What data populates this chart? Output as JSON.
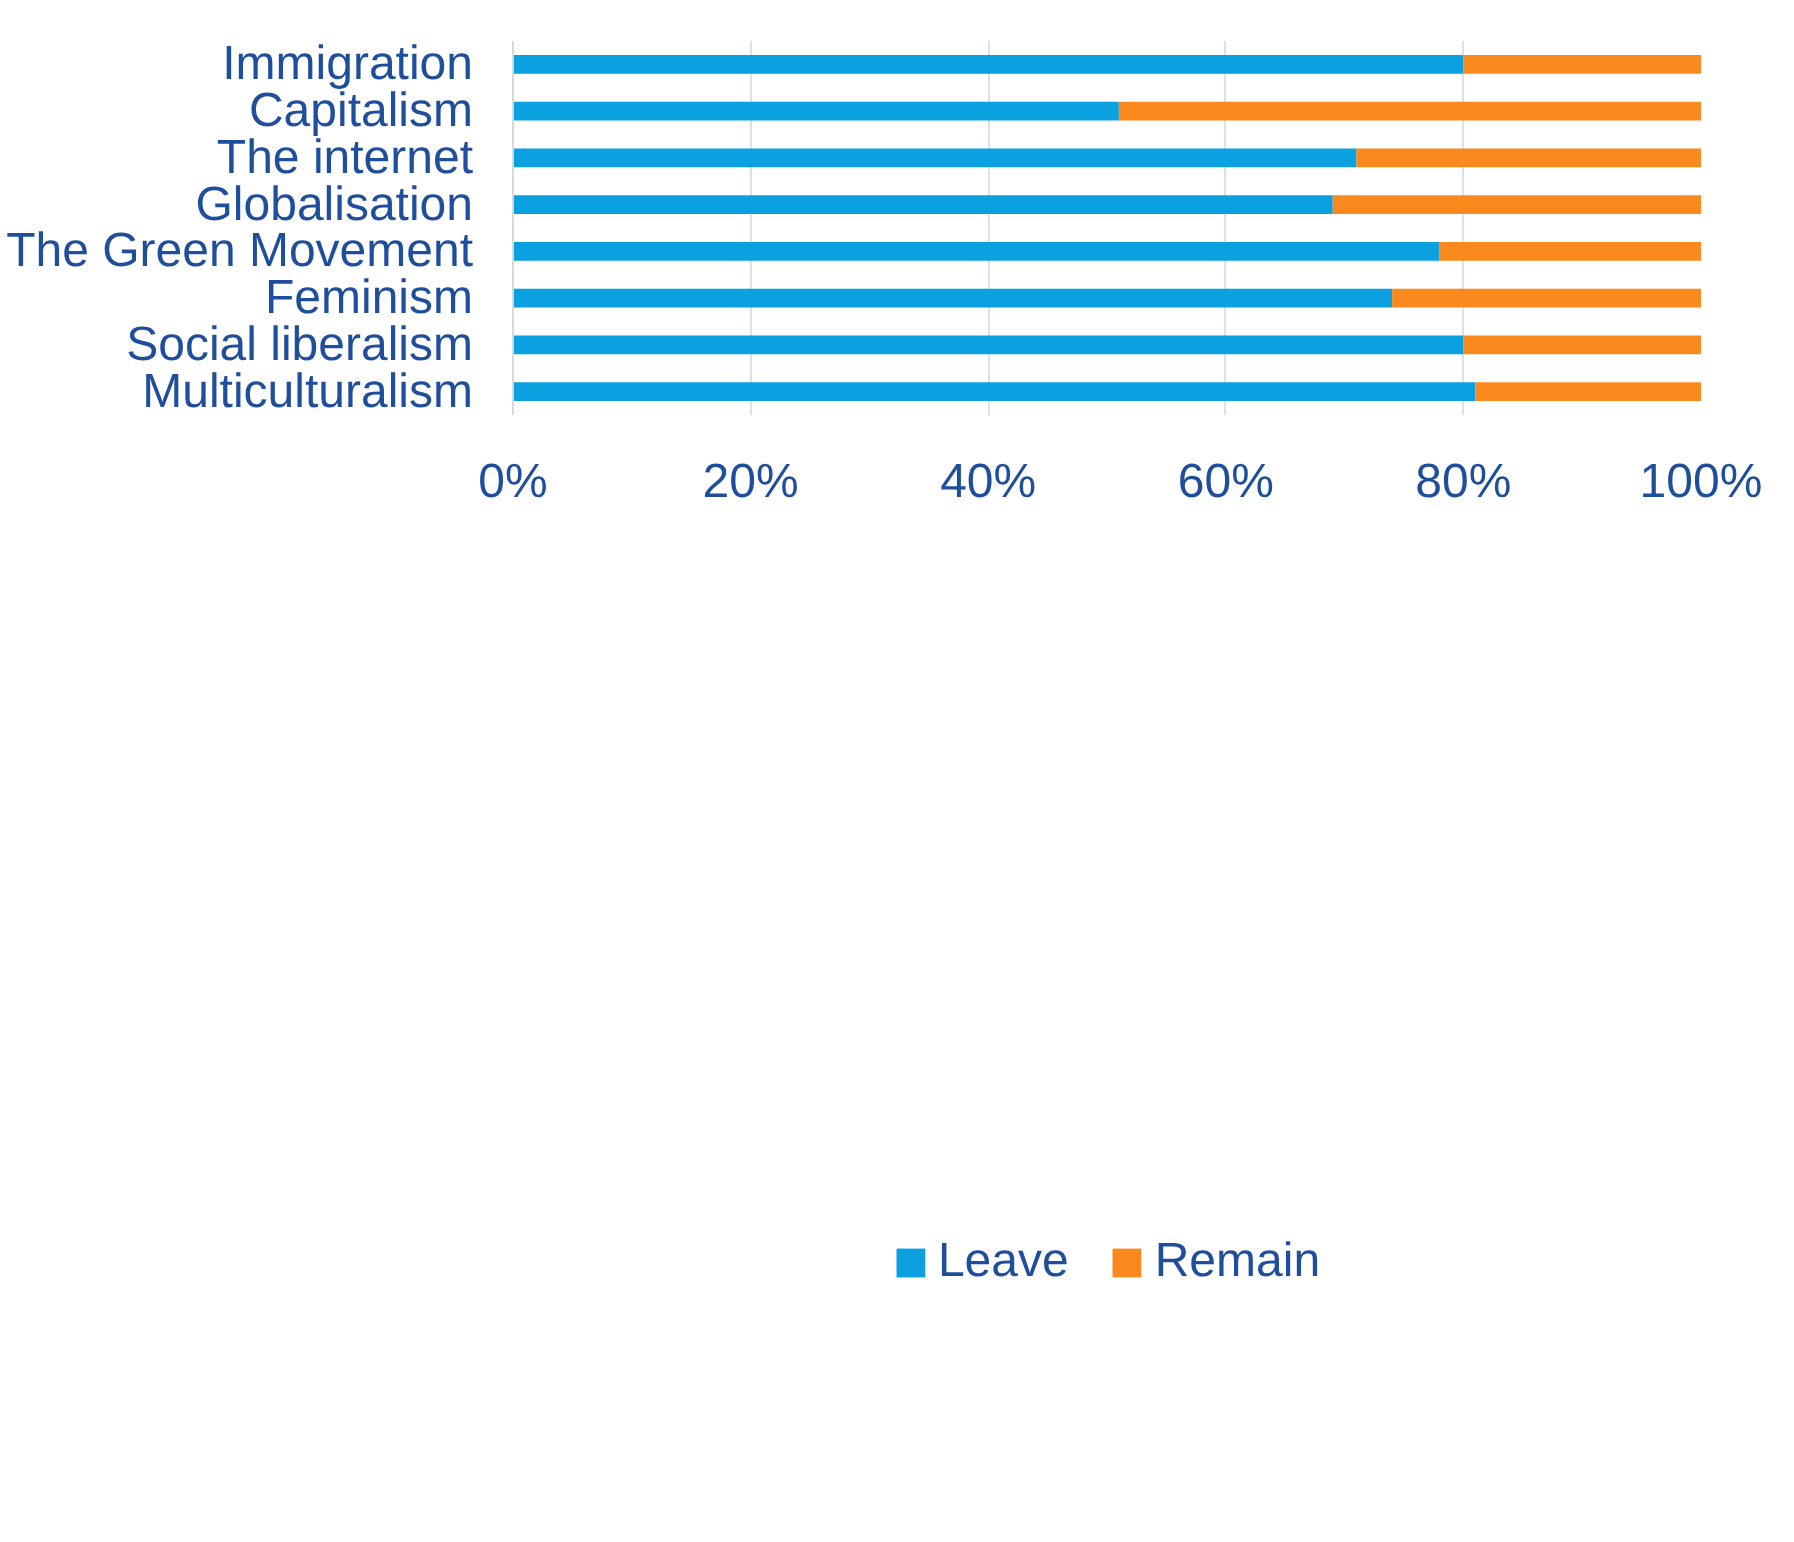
{
  "chart_data": {
    "type": "bar",
    "orientation": "horizontal",
    "stacked": true,
    "categories": [
      "Immigration",
      "Capitalism",
      "The internet",
      "Globalisation",
      "The Green Movement",
      "Feminism",
      "Social liberalism",
      "Multiculturalism"
    ],
    "series": [
      {
        "name": "Leave",
        "color": "#0ba0e0",
        "values": [
          80,
          51,
          71,
          69,
          78,
          74,
          80,
          81
        ]
      },
      {
        "name": "Remain",
        "color": "#fa8a1e",
        "values": [
          20,
          49,
          29,
          31,
          22,
          26,
          20,
          19
        ]
      }
    ],
    "xlim": [
      0,
      100
    ],
    "xticks": [
      {
        "value": 0,
        "label": "0%"
      },
      {
        "value": 20,
        "label": "20%"
      },
      {
        "value": 40,
        "label": "40%"
      },
      {
        "value": 60,
        "label": "60%"
      },
      {
        "value": 80,
        "label": "80%"
      },
      {
        "value": 100,
        "label": "100%"
      }
    ],
    "grid": "x",
    "legend": "bottom"
  }
}
